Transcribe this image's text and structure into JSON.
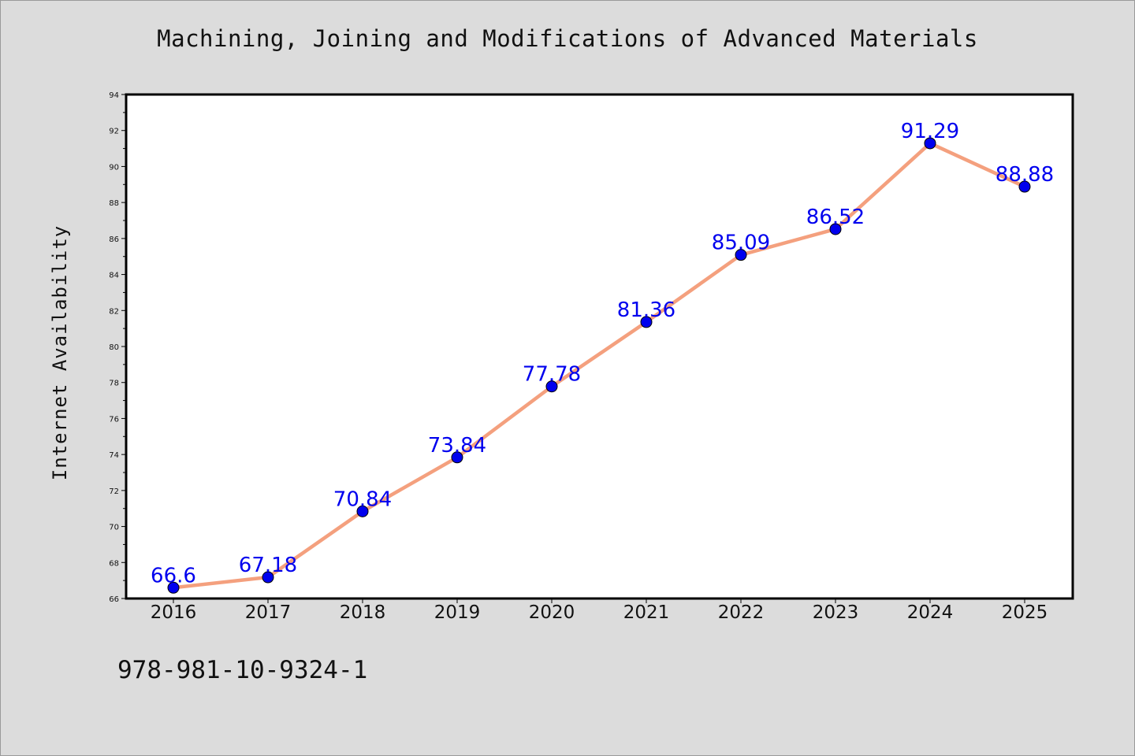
{
  "chart_data": {
    "type": "line",
    "title": "Machining, Joining and Modifications of Advanced Materials",
    "ylabel": "Internet Availability",
    "xlabel": "",
    "categories": [
      "2016",
      "2017",
      "2018",
      "2019",
      "2020",
      "2021",
      "2022",
      "2023",
      "2024",
      "2025"
    ],
    "series": [
      {
        "values": [
          66.6,
          67.18,
          70.84,
          73.84,
          77.78,
          81.36,
          85.09,
          86.52,
          91.29,
          88.88
        ],
        "labels": [
          "66.6",
          "67.18",
          "70.84",
          "73.84",
          "77.78",
          "81.36",
          "85.09",
          "86.52",
          "91.29",
          "88.88"
        ]
      }
    ],
    "ylim": [
      66,
      94
    ],
    "yticks": [
      "66",
      "68",
      "70",
      "72",
      "74",
      "76",
      "78",
      "80",
      "82",
      "84",
      "86",
      "88",
      "90",
      "92",
      "94"
    ],
    "grid": false,
    "line_color": "#f4a07e",
    "marker_color": "#0000ee",
    "label_color": "#0000ee"
  },
  "footnote": "978-981-10-9324-1"
}
